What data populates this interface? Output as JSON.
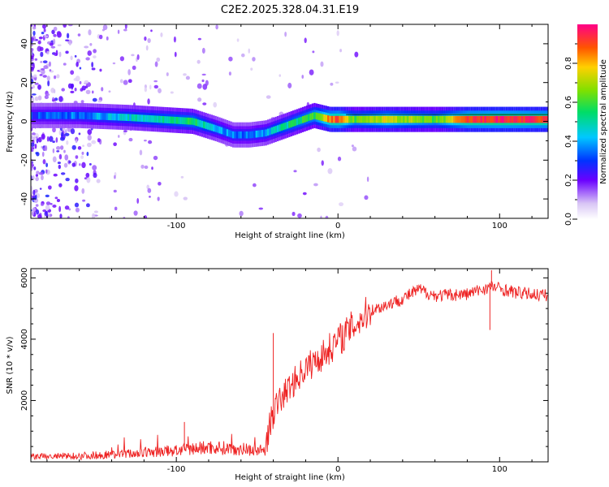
{
  "chart_data": [
    {
      "type": "heatmap",
      "title": "C2E2.2025.328.04.31.E19",
      "xlabel": "Height of straight line (km)",
      "ylabel": "Frequency (Hz)",
      "xlim": [
        -190,
        130
      ],
      "ylim": [
        -50,
        50
      ],
      "xticks": [
        -100,
        0,
        100
      ],
      "xtick_labels": [
        "-100",
        "0",
        "100"
      ],
      "yticks": [
        -40,
        -20,
        0,
        20,
        40
      ],
      "ytick_labels": [
        "-40",
        "-20",
        "0",
        "20",
        "40"
      ],
      "ridge": {
        "x": [
          -190,
          -160,
          -130,
          -110,
          -90,
          -75,
          -65,
          -55,
          -45,
          -35,
          -25,
          -15,
          -5,
          0,
          10,
          30,
          60,
          80,
          100,
          130
        ],
        "freq": [
          3,
          3,
          2,
          1,
          0,
          -4,
          -7,
          -7,
          -6,
          -3,
          0,
          3,
          1,
          1,
          1,
          1,
          1,
          1,
          1,
          1
        ],
        "amplitude": [
          0.3,
          0.35,
          0.45,
          0.5,
          0.55,
          0.4,
          0.35,
          0.35,
          0.4,
          0.5,
          0.55,
          0.6,
          0.85,
          0.9,
          0.6,
          0.75,
          0.6,
          0.9,
          0.95,
          0.9
        ]
      },
      "colorbar": {
        "label": "Normalized spectral amplitude",
        "range": [
          0,
          1
        ],
        "ticks": [
          0.0,
          0.2,
          0.4,
          0.6,
          0.8
        ],
        "tick_labels": [
          "0.0",
          "0.2",
          "0.4",
          "0.6",
          "0.8"
        ]
      }
    },
    {
      "type": "line",
      "xlabel": "Height of straight line (km)",
      "ylabel": "SNR (10 * v/v)",
      "xlim": [
        -190,
        130
      ],
      "ylim": [
        0,
        6300
      ],
      "xticks": [
        -100,
        0,
        100
      ],
      "xtick_labels": [
        "-100",
        "0",
        "100"
      ],
      "yticks": [
        2000,
        4000,
        6000
      ],
      "ytick_labels": [
        "2000",
        "4000",
        "6000"
      ],
      "color": "#ee2222",
      "envelope": {
        "x": [
          -190,
          -160,
          -130,
          -100,
          -80,
          -60,
          -45,
          -42,
          -38,
          -30,
          -20,
          -10,
          0,
          20,
          40,
          50,
          60,
          80,
          95,
          110,
          130
        ],
        "snr": [
          150,
          180,
          250,
          350,
          450,
          400,
          350,
          1200,
          1800,
          2400,
          3000,
          3400,
          3900,
          4900,
          5300,
          5600,
          5400,
          5450,
          5700,
          5500,
          5400
        ]
      },
      "spikes": [
        {
          "x": -95,
          "snr": 1300
        },
        {
          "x": -40,
          "snr": 4200
        },
        {
          "x": 95,
          "snr": 6250
        },
        {
          "x": 94,
          "snr": 4300
        }
      ]
    }
  ]
}
